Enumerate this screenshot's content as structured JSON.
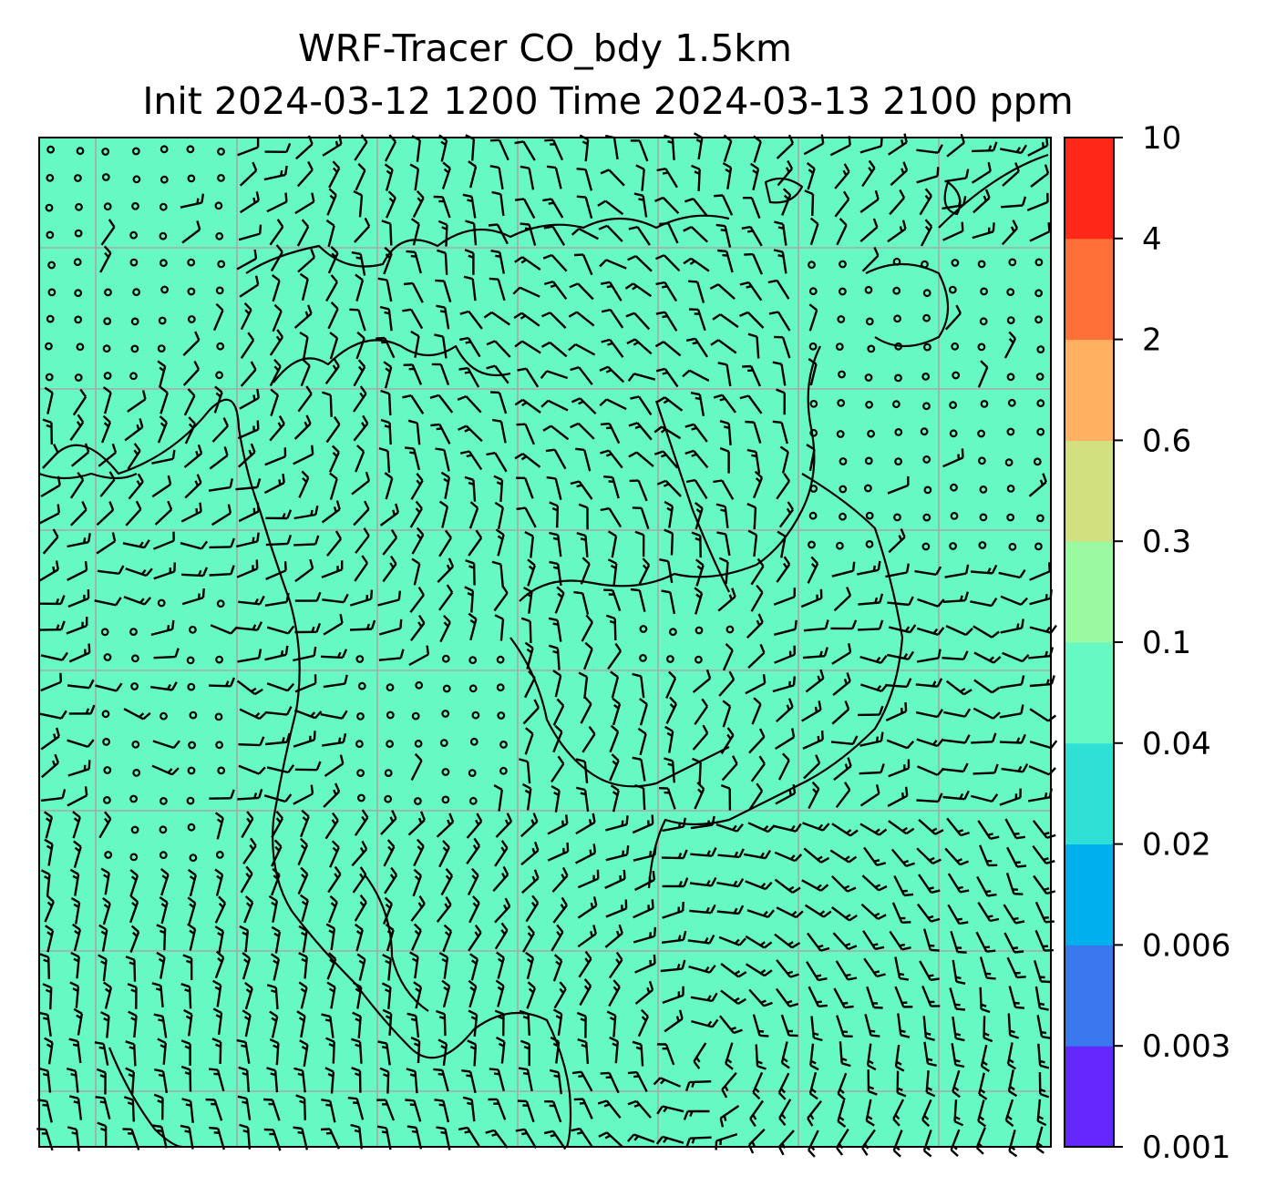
{
  "figure": {
    "title_line1": "WRF-Tracer CO_bdy 1.5km",
    "title_line2": "Init 2024-03-12 1200 Time 2024-03-13 2100 ppm"
  },
  "map": {
    "field_color": "#66f9c4",
    "gridline_color": "#a8a8a8",
    "coastline_color": "#000000",
    "barb_color": "#000000",
    "gridlines": true
  },
  "colorbar": {
    "levels": [
      "0.001",
      "0.003",
      "0.006",
      "0.02",
      "0.04",
      "0.1",
      "0.3",
      "0.6",
      "2",
      "4",
      "10"
    ],
    "colors": [
      "#6428ff",
      "#3a78f0",
      "#00b0ee",
      "#2ee0d5",
      "#66f9c4",
      "#9afaa2",
      "#d2e080",
      "#ffb060",
      "#ff7038",
      "#ff2818"
    ]
  }
}
